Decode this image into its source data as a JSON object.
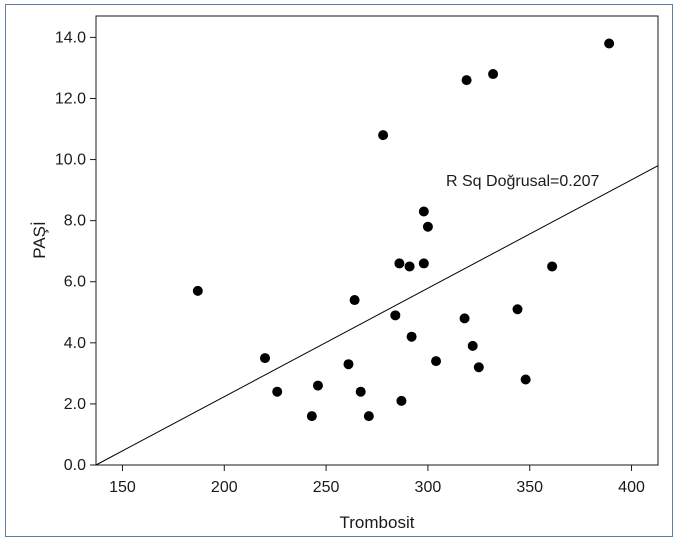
{
  "chart_data": {
    "type": "scatter",
    "title": "",
    "xlabel": "Trombosit",
    "ylabel": "PAŞİ",
    "xlim": [
      137,
      413
    ],
    "ylim": [
      0,
      14.7
    ],
    "xticks": [
      150,
      200,
      250,
      300,
      350,
      400
    ],
    "yticks": [
      "0.0",
      "2.0",
      "4.0",
      "6.0",
      "8.0",
      "10.0",
      "12.0",
      "14.0"
    ],
    "grid": false,
    "legend": "none",
    "points": [
      {
        "x": 187,
        "y": 5.7
      },
      {
        "x": 220,
        "y": 3.5
      },
      {
        "x": 226,
        "y": 2.4
      },
      {
        "x": 243,
        "y": 1.6
      },
      {
        "x": 246,
        "y": 2.6
      },
      {
        "x": 261,
        "y": 3.3
      },
      {
        "x": 264,
        "y": 5.4
      },
      {
        "x": 267,
        "y": 2.4
      },
      {
        "x": 271,
        "y": 1.6
      },
      {
        "x": 278,
        "y": 10.8
      },
      {
        "x": 284,
        "y": 4.9
      },
      {
        "x": 286,
        "y": 6.6
      },
      {
        "x": 287,
        "y": 2.1
      },
      {
        "x": 291,
        "y": 6.5
      },
      {
        "x": 292,
        "y": 4.2
      },
      {
        "x": 298,
        "y": 6.6
      },
      {
        "x": 298,
        "y": 8.3
      },
      {
        "x": 300,
        "y": 7.8
      },
      {
        "x": 304,
        "y": 3.4
      },
      {
        "x": 318,
        "y": 4.8
      },
      {
        "x": 319,
        "y": 12.6
      },
      {
        "x": 322,
        "y": 3.9
      },
      {
        "x": 325,
        "y": 3.2
      },
      {
        "x": 332,
        "y": 12.8
      },
      {
        "x": 344,
        "y": 5.1
      },
      {
        "x": 348,
        "y": 2.8
      },
      {
        "x": 361,
        "y": 6.5
      },
      {
        "x": 389,
        "y": 13.8
      }
    ],
    "fit_line": {
      "x1": 137,
      "y1": 0.0,
      "x2": 413,
      "y2": 9.8
    },
    "annotation": "R Sq Doğrusal=0.207",
    "point_color": "#000000",
    "line_color": "#000000"
  }
}
